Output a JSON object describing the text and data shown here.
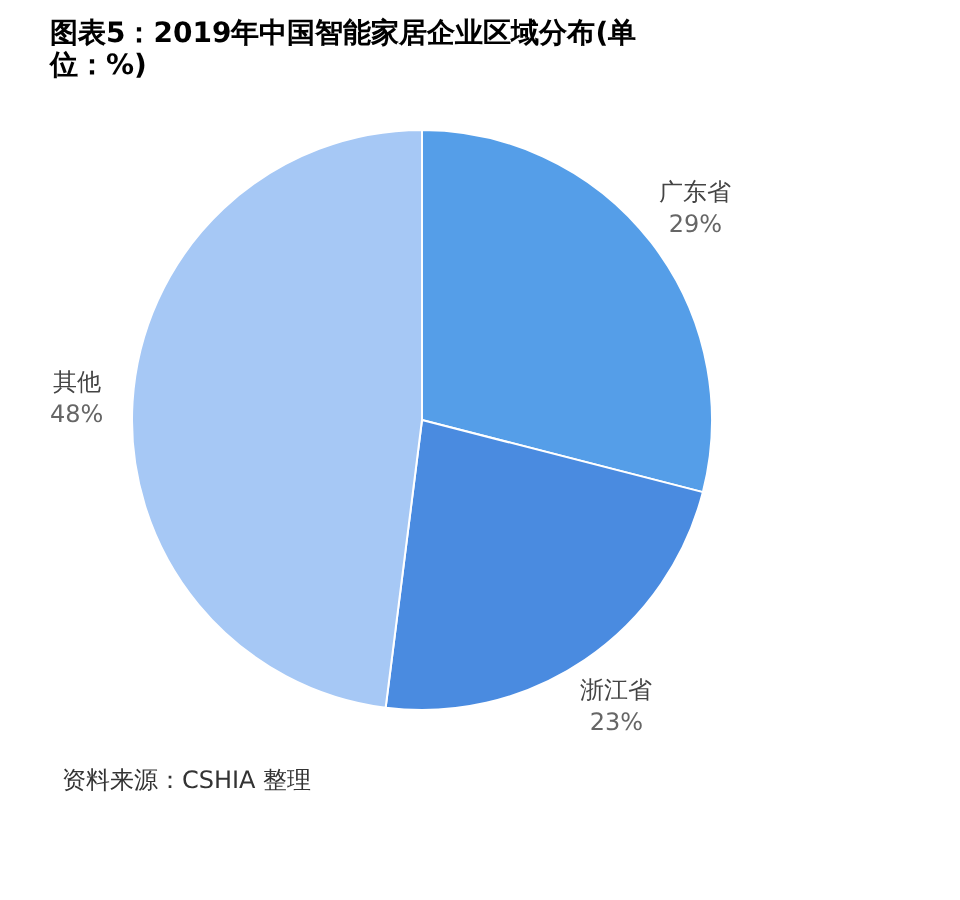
{
  "chart_data": {
    "type": "pie",
    "title": [
      "图表5：2019年中国智能家居企业区域分布(单",
      "位：%)"
    ],
    "categories": [
      "广东省",
      "浙江省",
      "其他"
    ],
    "values": [
      29,
      23,
      48
    ],
    "value_labels": [
      "29%",
      "23%",
      "48%"
    ],
    "colors": [
      "#559ee8",
      "#4a8be0",
      "#a6c8f5"
    ],
    "legend": false,
    "annotations": [
      "资料来源：CSHIA 整理"
    ]
  }
}
